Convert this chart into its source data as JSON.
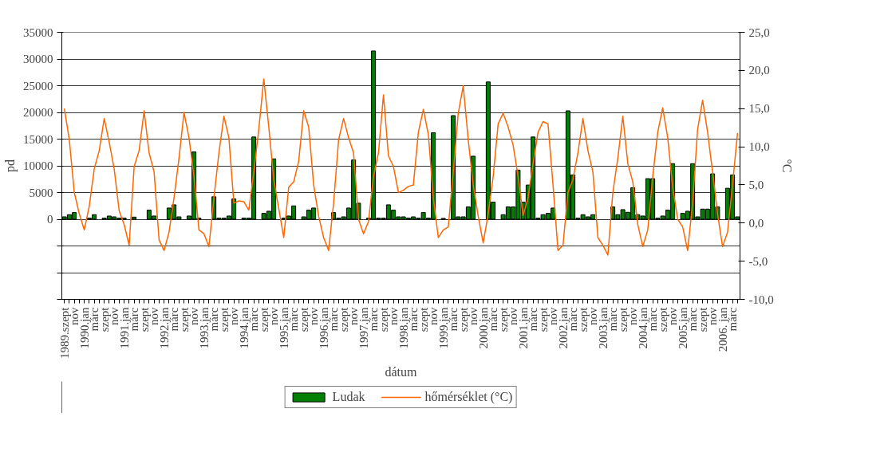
{
  "chart_data": {
    "type": "bar",
    "xlabel": "dátum",
    "ylabel": "pd",
    "y2label": "°C",
    "categories": [
      "1989.szept",
      null,
      "nov",
      null,
      "1990.jan",
      null,
      "márc",
      null,
      "szept",
      null,
      "nov",
      null,
      "1991.jan",
      null,
      "márc",
      null,
      "szept",
      null,
      "nov",
      null,
      "1992.jan",
      null,
      "márc",
      null,
      "szept",
      null,
      "nov",
      null,
      "1993.jan",
      null,
      "márc",
      null,
      "szept",
      null,
      "nov",
      null,
      "1994.jan",
      null,
      "márc",
      null,
      "szept",
      null,
      "nov",
      null,
      "1995.jan",
      null,
      "márc",
      null,
      "szept",
      null,
      "nov",
      null,
      "1996.jan",
      null,
      "márc",
      null,
      "szept",
      null,
      "nov",
      null,
      "1997.jan",
      null,
      "márc",
      null,
      "szept",
      null,
      "nov",
      null,
      "1998.jan",
      null,
      "márc",
      null,
      "szept",
      null,
      "nov",
      null,
      "1999.jan",
      null,
      "márc",
      null,
      "szept",
      null,
      "nov",
      null,
      "2000.jan",
      null,
      "márc",
      null,
      "szept",
      null,
      "nov",
      null,
      "2001.jan",
      null,
      "márc",
      null,
      "szept",
      null,
      "nov",
      null,
      "2002.jan",
      null,
      "márc",
      null,
      "szept",
      null,
      "nov",
      null,
      "2003.jan",
      null,
      "márc",
      null,
      "szept",
      null,
      "nov",
      null,
      "2004.jan",
      null,
      "márc",
      null,
      "szept",
      null,
      "nov",
      null,
      "2005.jan",
      null,
      "márc",
      null,
      "szept",
      null,
      "nov",
      null,
      "2006. jan",
      null,
      "márc",
      null
    ],
    "series": [
      {
        "name": "Ludak",
        "color": "#008000",
        "values": [
          450,
          850,
          1250,
          null,
          null,
          200,
          850,
          null,
          200,
          600,
          450,
          200,
          200,
          null,
          400,
          null,
          null,
          1700,
          600,
          null,
          null,
          2100,
          2700,
          450,
          null,
          600,
          12600,
          200,
          null,
          null,
          4200,
          200,
          200,
          600,
          3800,
          null,
          200,
          200,
          15400,
          null,
          1100,
          1500,
          11300,
          null,
          200,
          600,
          2500,
          null,
          450,
          1700,
          2100,
          null,
          null,
          null,
          1250,
          200,
          450,
          2100,
          11100,
          3000,
          null,
          200,
          31500,
          200,
          200,
          2700,
          1700,
          450,
          450,
          200,
          450,
          200,
          1250,
          200,
          16200,
          null,
          150,
          null,
          19400,
          450,
          450,
          2300,
          11800,
          null,
          null,
          25700,
          3200,
          null,
          850,
          2300,
          2300,
          9200,
          3200,
          6400,
          15400,
          200,
          850,
          1100,
          2100,
          null,
          null,
          20300,
          8300,
          200,
          850,
          450,
          850,
          null,
          null,
          null,
          2300,
          850,
          1800,
          1300,
          5900,
          850,
          600,
          7600,
          7600,
          200,
          600,
          1700,
          10400,
          null,
          1100,
          1500,
          10400,
          450,
          1900,
          1900,
          8500,
          2300,
          null,
          5800,
          8300,
          450
        ]
      },
      {
        "name": "hőmérséklet (°C)",
        "type": "line",
        "axis": "y2",
        "color": "#ff6600",
        "values": [
          15.0,
          10.9,
          4.0,
          1.2,
          -0.9,
          2.2,
          7.1,
          9.5,
          13.7,
          10.6,
          7.1,
          1.6,
          -0.2,
          -2.9,
          7.4,
          9.5,
          14.7,
          9.2,
          6.7,
          -2.2,
          -3.6,
          -1.2,
          3.3,
          8.5,
          14.5,
          11.2,
          6.1,
          -0.9,
          -1.4,
          -3.1,
          3.3,
          9.2,
          14.0,
          11.2,
          2.6,
          2.9,
          2.8,
          1.7,
          6.7,
          12.3,
          18.9,
          12.6,
          5.7,
          1.9,
          -1.9,
          4.7,
          5.4,
          8.1,
          14.7,
          12.6,
          5.0,
          0.9,
          -1.9,
          -3.6,
          2.6,
          10.9,
          13.7,
          11.2,
          9.2,
          0.5,
          -1.4,
          0.2,
          6.1,
          9.2,
          16.8,
          8.8,
          7.4,
          4.0,
          4.3,
          4.8,
          5.0,
          11.9,
          14.9,
          11.6,
          3.3,
          -1.9,
          -0.9,
          -0.5,
          6.7,
          14.4,
          18.0,
          10.9,
          5.0,
          0.9,
          -2.6,
          1.2,
          6.1,
          13.0,
          14.4,
          12.6,
          10.2,
          6.1,
          1.0,
          3.3,
          7.8,
          11.9,
          13.3,
          13.0,
          5.0,
          -3.6,
          -2.9,
          4.0,
          5.7,
          9.2,
          13.7,
          9.5,
          6.7,
          -1.9,
          -2.9,
          -4.2,
          4.0,
          8.5,
          14.0,
          7.8,
          5.4,
          -0.2,
          -3.1,
          -0.9,
          6.1,
          11.9,
          15.1,
          11.2,
          4.7,
          0.5,
          -0.5,
          -3.6,
          2.6,
          12.3,
          16.1,
          11.9,
          6.7,
          1.2,
          -3.1,
          -1.2,
          5.0,
          11.8
        ]
      }
    ],
    "ylim": [
      -15000,
      35000
    ],
    "yticks": [
      {
        "value": -15000,
        "label": null
      },
      {
        "value": -10000,
        "label": null
      },
      {
        "value": -5000,
        "label": null
      },
      0,
      5000,
      10000,
      15000,
      20000,
      25000,
      30000,
      35000
    ],
    "y2lim": [
      -10,
      25
    ],
    "y2ticks": [
      {
        "value": -10,
        "label": "-10,0"
      },
      {
        "value": -5,
        "label": "-5,0"
      },
      {
        "value": 0,
        "label": "0,0"
      },
      {
        "value": 5,
        "label": "5,0"
      },
      {
        "value": 10,
        "label": "10,0"
      },
      {
        "value": 15,
        "label": "15,0"
      },
      {
        "value": 20,
        "label": "20,0"
      },
      {
        "value": 25,
        "label": "25,0"
      }
    ],
    "grid": "y",
    "legend": "bottom"
  }
}
